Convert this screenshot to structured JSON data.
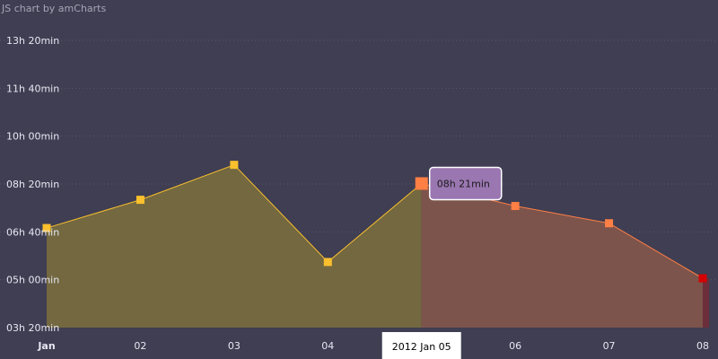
{
  "credit": "JS chart by amCharts",
  "chart_data": {
    "type": "area",
    "title": "",
    "xlabel": "",
    "ylabel": "",
    "x": [
      "2012-01-01",
      "2012-01-02",
      "2012-01-03",
      "2012-01-04",
      "2012-01-05",
      "2012-01-06",
      "2012-01-07",
      "2012-01-08"
    ],
    "x_tick_labels": [
      "Jan",
      "02",
      "03",
      "04",
      "05",
      "06",
      "07",
      "08"
    ],
    "y_tick_labels": [
      "03h 20min",
      "05h 00min",
      "06h 40min",
      "08h 20min",
      "10h 00min",
      "11h 40min",
      "13h 20min"
    ],
    "y_tick_values_min": [
      200,
      300,
      400,
      500,
      600,
      700,
      800
    ],
    "ylim_min": [
      200,
      800
    ],
    "series": [
      {
        "values_min": [
          408,
          467,
          540,
          337,
          501,
          454,
          418,
          303
        ],
        "point_colors": [
          "#fbc02d",
          "#fbc02d",
          "#fbc02d",
          "#fbc02d",
          "#ff7f45",
          "#ff7f45",
          "#ff7f45",
          "#d40000"
        ]
      }
    ],
    "area_colors": {
      "segment_1": "#736840",
      "segment_2": "#7d544b",
      "segment_3": "#6b2e3a"
    },
    "line_colors": {
      "segment_1": "#fbc02d",
      "segment_2": "#ff7f45"
    },
    "grid": true,
    "cursor": {
      "label": "2012 Jan 05"
    },
    "tooltip": {
      "text": "08h 21min",
      "color": "#9a77b1"
    }
  }
}
